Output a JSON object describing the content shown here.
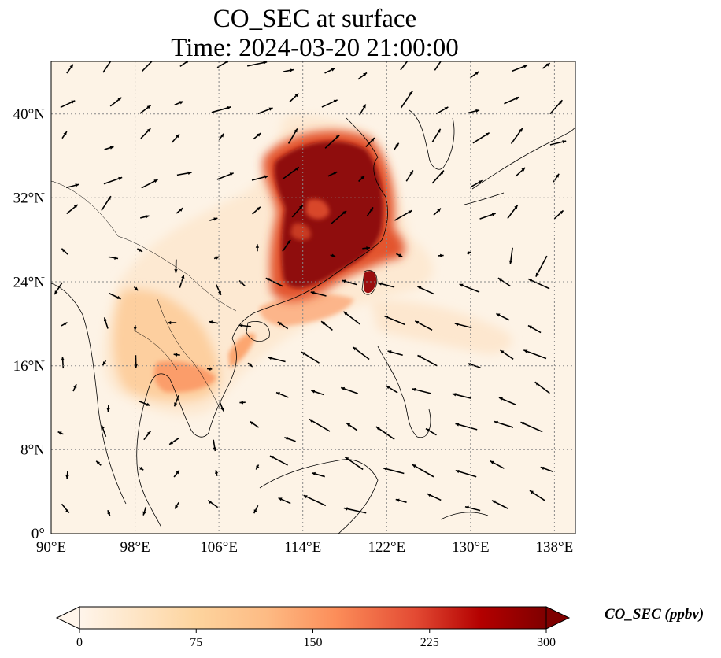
{
  "title": {
    "line1": "CO_SEC at surface",
    "line2": "Time: 2024-03-20 21:00:00"
  },
  "map": {
    "lon_range": [
      90,
      140
    ],
    "lat_range": [
      0,
      45
    ],
    "lon_ticks": [
      "90°E",
      "98°E",
      "106°E",
      "114°E",
      "122°E",
      "130°E",
      "138°E"
    ],
    "lat_ticks": [
      "0°",
      "8°N",
      "16°N",
      "24°N",
      "32°N",
      "40°N"
    ],
    "gridlines": true,
    "ocean_color": "#fff5eb",
    "field_colormap": "OrRd-like (white → orange → dark red)",
    "wind_arrows": true,
    "coastlines": true,
    "country_borders": true
  },
  "colorbar": {
    "title": "CO_SEC (ppbv)",
    "min": 0,
    "max": 300,
    "tick_labels": [
      "0",
      "75",
      "150",
      "225",
      "300"
    ],
    "extend": "both",
    "colors": [
      "#fff5eb",
      "#fdd49e",
      "#fdbb84",
      "#fc8d59",
      "#e34a33",
      "#b30000",
      "#7f0000"
    ]
  }
}
